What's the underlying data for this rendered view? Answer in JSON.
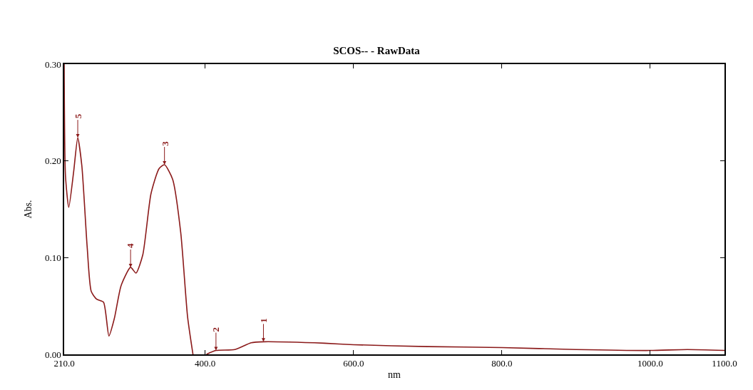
{
  "chart_data": {
    "type": "line",
    "title": "SCOS-- - RawData",
    "xlabel": "nm",
    "ylabel": "Abs.",
    "x": [
      210,
      211.8,
      216.2,
      222.8,
      228.3,
      233.8,
      241,
      246.5,
      253.8,
      263,
      270.3,
      277.6,
      286.7,
      299.5,
      306.8,
      316,
      327,
      337.9,
      345.2,
      356.2,
      367.1,
      376.3,
      383.6,
      392,
      401.8,
      414.6,
      440,
      462,
      478.6,
      560.8,
      600,
      700,
      800,
      900,
      1000,
      1050,
      1100
    ],
    "series": [
      {
        "color": "#8b1a1a",
        "values": [
          0.3,
          0.184,
          0.152,
          0.189,
          0.224,
          0.195,
          0.111,
          0.065,
          0.057,
          0.054,
          0.019,
          0.037,
          0.071,
          0.09,
          0.084,
          0.103,
          0.166,
          0.192,
          0.196,
          0.181,
          0.126,
          0.039,
          0.0,
          null,
          0.0,
          0.004,
          0.005,
          0.012,
          0.013,
          0.0115,
          0.01,
          0.008,
          0.007,
          0.005,
          0.004,
          0.005,
          0.004
        ]
      }
    ],
    "xlim": [
      210,
      1100
    ],
    "xticks": [
      {
        "value": 210,
        "label": "210.0"
      },
      {
        "value": 400,
        "label": "400.0"
      },
      {
        "value": 600,
        "label": "600.0"
      },
      {
        "value": 800,
        "label": "800.0"
      },
      {
        "value": 1000,
        "label": "1000.0"
      },
      {
        "value": 1100,
        "label": "1100.0"
      }
    ],
    "ylim": [
      0,
      0.3
    ],
    "yticks": [
      {
        "value": 0,
        "label": "0.00"
      },
      {
        "value": 0.1,
        "label": "0.10"
      },
      {
        "value": 0.2,
        "label": "0.20"
      },
      {
        "value": 0.3,
        "label": "0.30"
      }
    ],
    "annotations": [
      {
        "text": "1",
        "x": 478.6,
        "y": 0.013
      },
      {
        "text": "2",
        "x": 414.6,
        "y": 0.004
      },
      {
        "text": "3",
        "x": 345.2,
        "y": 0.196
      },
      {
        "text": "4",
        "x": 299.5,
        "y": 0.09
      },
      {
        "text": "5",
        "x": 228.3,
        "y": 0.224
      }
    ],
    "marker": "none",
    "line_style": "solid"
  }
}
